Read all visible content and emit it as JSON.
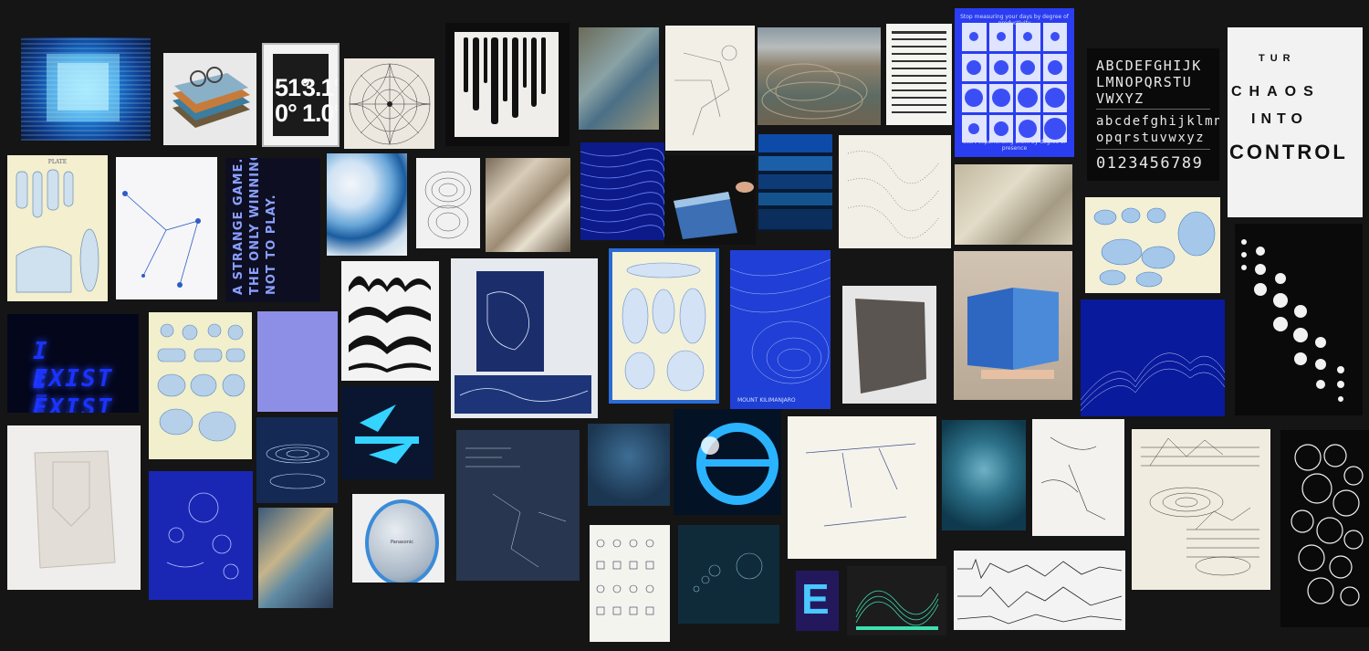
{
  "board": {
    "background": "#151515",
    "numbers_poster": {
      "top_left": "51°",
      "top_right": "3.1°",
      "bottom_left": "0°",
      "bottom_right": "1.0°"
    },
    "quote_poster": {
      "text": "A STRANGE GAME.\nTHE ONLY WINNING MOVE IS\nNOT TO PLAY."
    },
    "exist_poster": {
      "line1": "I EXIST",
      "line2": "I EXIST",
      "line3": "I EXIST"
    },
    "alphabet_poster": {
      "upper1": "ABCDEFGHIJK",
      "upper2": "LMNOPQRSTU",
      "upper3": "VWXYZ",
      "lower1": "abcdefghijklmn",
      "lower2": "opqrstuvwxyz",
      "digits": "0123456789"
    },
    "chaos_poster": {
      "w1": "TUR",
      "w2": "CHAOS",
      "w3": "INTO",
      "w4": "CONTROL"
    },
    "measure_poster": {
      "top_caption": "Stop measuring your days by degree of productivity",
      "bottom_caption": "Start experiencing them by degree of presence",
      "accent": "#2a3df0"
    },
    "plate_poster": {
      "label": "PLATE"
    },
    "kilimanjaro_poster": {
      "caption": "MOUNT KILIMANJARO"
    },
    "player": {
      "brand": "Panasonic"
    },
    "letter_e": {
      "text": "E"
    },
    "accent_blue": "#1e4fd8"
  }
}
